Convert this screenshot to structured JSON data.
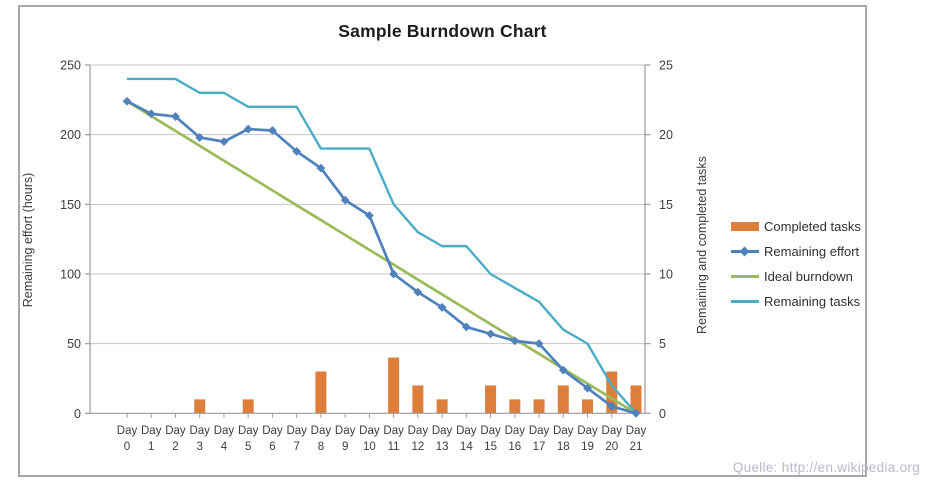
{
  "title": "Sample Burndown Chart",
  "watermark": "Quelle: http://en.wikipedia.org",
  "axes": {
    "left": {
      "title": "Remaining effort (hours)",
      "ticks": [
        0,
        50,
        100,
        150,
        200,
        250
      ],
      "range": [
        0,
        250
      ]
    },
    "right": {
      "title": "Remaining and completed tasks",
      "ticks": [
        0,
        5,
        10,
        15,
        20,
        25
      ],
      "range": [
        0,
        25
      ]
    },
    "x": {
      "label_prefix": "Day",
      "days": [
        0,
        1,
        2,
        3,
        4,
        5,
        6,
        7,
        8,
        9,
        10,
        11,
        12,
        13,
        14,
        15,
        16,
        17,
        18,
        19,
        20,
        21
      ]
    }
  },
  "legend": {
    "items": [
      {
        "label": "Completed tasks",
        "type": "bar",
        "color": "#dd7e3b"
      },
      {
        "label": "Remaining effort",
        "type": "line-diamond",
        "color": "#4f81bd"
      },
      {
        "label": "Ideal burndown",
        "type": "line",
        "color": "#9bbb59"
      },
      {
        "label": "Remaining tasks",
        "type": "line",
        "color": "#4bacc6"
      }
    ]
  },
  "colors": {
    "bar_orange": "#dd7e3b",
    "effort_blue": "#4f81bd",
    "ideal_green": "#9bbb59",
    "tasks_teal": "#4bacc6",
    "gridline": "#c6c6c6",
    "axis_line": "#9b9b9b",
    "tick_text": "#3d3d3d",
    "watermark_text": "#b6bacb"
  },
  "chart_data": {
    "type": "bar",
    "subtype": "combo-bar-line-dual-axis",
    "title": "Sample Burndown Chart",
    "x": [
      0,
      1,
      2,
      3,
      4,
      5,
      6,
      7,
      8,
      9,
      10,
      11,
      12,
      13,
      14,
      15,
      16,
      17,
      18,
      19,
      20,
      21
    ],
    "x_tick_labels": [
      "Day 0",
      "Day 1",
      "Day 2",
      "Day 3",
      "Day 4",
      "Day 5",
      "Day 6",
      "Day 7",
      "Day 8",
      "Day 9",
      "Day 10",
      "Day 11",
      "Day 12",
      "Day 13",
      "Day 14",
      "Day 15",
      "Day 16",
      "Day 17",
      "Day 18",
      "Day 19",
      "Day 20",
      "Day 21"
    ],
    "ylabel_left": "Remaining effort (hours)",
    "ylabel_right": "Remaining and completed tasks",
    "ylim_left": [
      0,
      250
    ],
    "ylim_right": [
      0,
      25
    ],
    "grid": true,
    "legend_position": "right",
    "series": [
      {
        "name": "Completed tasks",
        "type": "bar",
        "axis": "right",
        "color": "#dd7e3b",
        "values": [
          0,
          0,
          0,
          1,
          0,
          1,
          0,
          0,
          3,
          0,
          0,
          4,
          2,
          1,
          0,
          2,
          1,
          1,
          2,
          1,
          3,
          2
        ]
      },
      {
        "name": "Remaining effort",
        "type": "line",
        "marker": "diamond",
        "axis": "left",
        "color": "#4f81bd",
        "values": [
          224,
          215,
          213,
          198,
          195,
          204,
          203,
          188,
          176,
          153,
          142,
          100,
          87,
          76,
          62,
          57,
          52,
          50,
          31,
          18,
          5,
          0
        ]
      },
      {
        "name": "Ideal burndown",
        "type": "line",
        "axis": "left",
        "color": "#9bbb59",
        "values": [
          224,
          213.3,
          202.7,
          192,
          181.3,
          170.7,
          160,
          149.3,
          138.7,
          128,
          117.3,
          106.7,
          96,
          85.3,
          74.7,
          64,
          53.3,
          42.7,
          32,
          21.3,
          10.7,
          0
        ]
      },
      {
        "name": "Remaining tasks",
        "type": "line",
        "axis": "right",
        "color": "#4bacc6",
        "values": [
          24,
          24,
          24,
          23,
          23,
          22,
          22,
          22,
          19,
          19,
          19,
          15,
          13,
          12,
          12,
          10,
          9,
          8,
          6,
          5,
          2,
          0
        ]
      }
    ]
  }
}
